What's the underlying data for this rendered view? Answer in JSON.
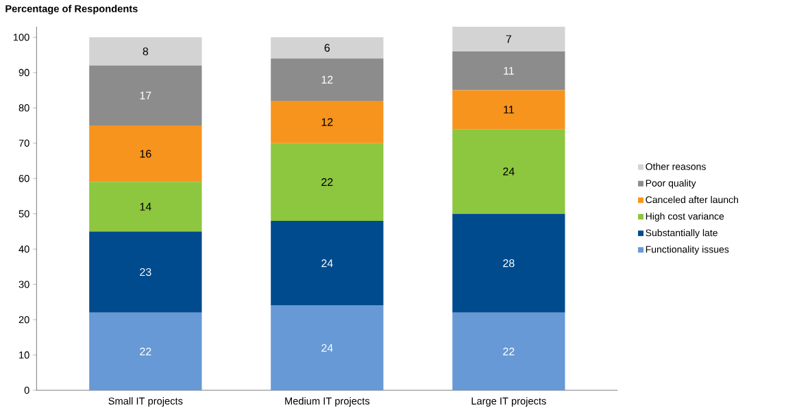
{
  "chart_data": {
    "type": "bar",
    "stacked": true,
    "ylabel": "Percentage of Respondents",
    "categories": [
      "Small IT projects",
      "Medium IT projects",
      "Large IT projects"
    ],
    "series": [
      {
        "name": "Functionality issues",
        "color": "#6699d5",
        "values": [
          22,
          24,
          22
        ]
      },
      {
        "name": "Substantially late",
        "color": "#004b8d",
        "values": [
          23,
          24,
          28
        ]
      },
      {
        "name": "High cost variance",
        "color": "#8dc63f",
        "values": [
          14,
          22,
          24
        ]
      },
      {
        "name": "Canceled after launch",
        "color": "#f7941d",
        "values": [
          16,
          12,
          11
        ]
      },
      {
        "name": "Poor quality",
        "color": "#8c8c8c",
        "values": [
          17,
          12,
          11
        ]
      },
      {
        "name": "Other reasons",
        "color": "#d3d3d3",
        "values": [
          8,
          6,
          7
        ]
      }
    ],
    "ylim": [
      0,
      103
    ],
    "yticks": [
      0,
      10,
      20,
      30,
      40,
      50,
      60,
      70,
      80,
      90,
      100
    ],
    "data_labels": true,
    "legend": "right",
    "grid": false
  }
}
